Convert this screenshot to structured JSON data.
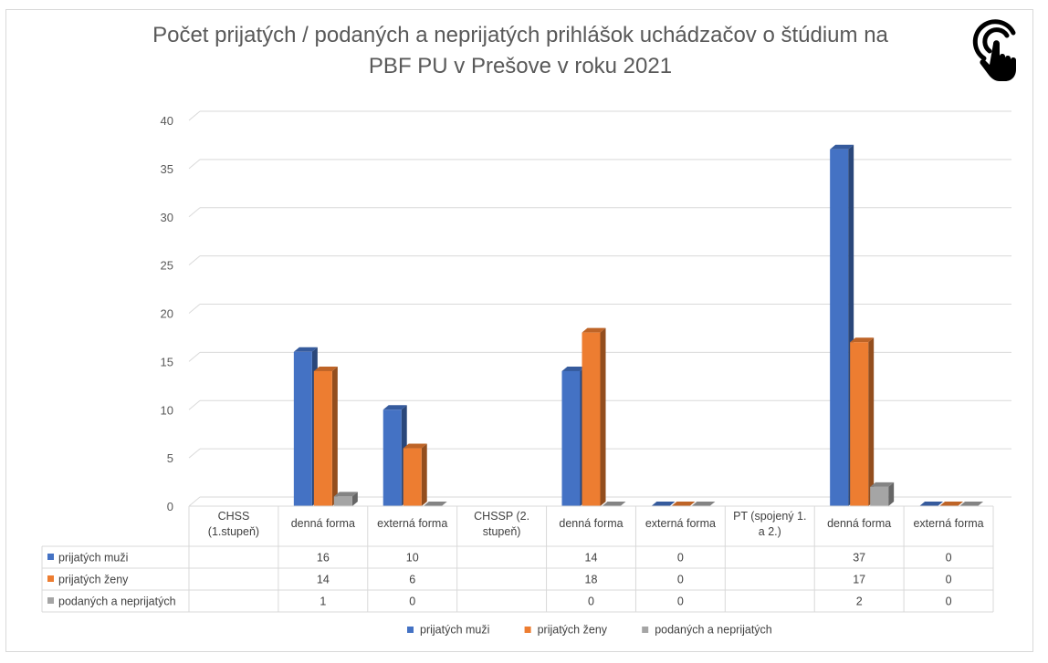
{
  "chart_data": {
    "type": "bar",
    "title_lines": [
      "Počet prijatých / podaných a neprijatých prihlášok uchádzačov o štúdium na",
      "PBF PU v Prešove v roku 2021"
    ],
    "categories": [
      "CHSS (1.stupeň)",
      "denná forma",
      "externá forma",
      "CHSSP (2. stupeň)",
      "denná forma",
      "externá forma",
      "PT (spojený 1. a 2.)",
      "denná forma",
      "externá forma"
    ],
    "category_lines": [
      [
        "CHSS",
        "(1.stupeň)"
      ],
      [
        "denná forma"
      ],
      [
        "externá forma"
      ],
      [
        "CHSSP (2.",
        "stupeň)"
      ],
      [
        "denná forma"
      ],
      [
        "externá forma"
      ],
      [
        "PT (spojený 1.",
        "a 2.)"
      ],
      [
        "denná forma"
      ],
      [
        "externá forma"
      ]
    ],
    "series": [
      {
        "name": "prijatých muži",
        "color": "#4472C4",
        "values": [
          null,
          16,
          10,
          null,
          14,
          0,
          null,
          37,
          0
        ]
      },
      {
        "name": "prijatých ženy",
        "color": "#ED7D31",
        "values": [
          null,
          14,
          6,
          null,
          18,
          0,
          null,
          17,
          0
        ]
      },
      {
        "name": "podaných a neprijatých",
        "color": "#A5A5A5",
        "values": [
          null,
          1,
          0,
          null,
          0,
          0,
          null,
          2,
          0
        ]
      }
    ],
    "ylim": [
      0,
      40
    ],
    "yticks": [
      0,
      5,
      10,
      15,
      20,
      25,
      30,
      35,
      40
    ],
    "grid": true,
    "legend": "bottom",
    "data_table": true,
    "three_d": true
  },
  "icons": {
    "corner": "touch-hand-icon"
  }
}
